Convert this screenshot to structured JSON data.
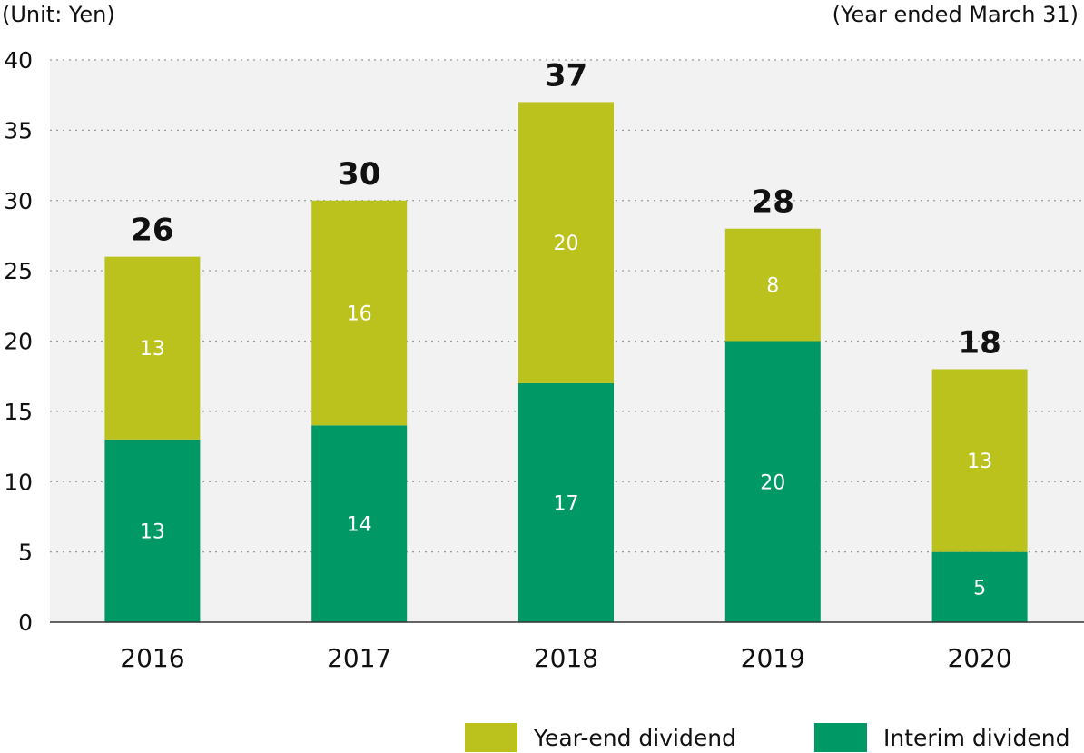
{
  "chart_data": {
    "type": "bar",
    "stacked": true,
    "unit_label": "(Unit: Yen)",
    "period_label": "(Year ended March 31)",
    "categories": [
      "2016",
      "2017",
      "2018",
      "2019",
      "2020"
    ],
    "series": [
      {
        "name": "Interim dividend",
        "values": [
          13,
          14,
          17,
          20,
          5
        ],
        "color": "#009966"
      },
      {
        "name": "Year-end dividend",
        "values": [
          13,
          16,
          20,
          8,
          13
        ],
        "color": "#bbc21e"
      }
    ],
    "totals": [
      26,
      30,
      37,
      28,
      18
    ],
    "ylim": [
      0,
      40
    ],
    "yticks": [
      0,
      5,
      10,
      15,
      20,
      25,
      30,
      35,
      40
    ],
    "grid": true,
    "legend_position": "bottom-right",
    "plot_background": "#f2f2f2"
  }
}
